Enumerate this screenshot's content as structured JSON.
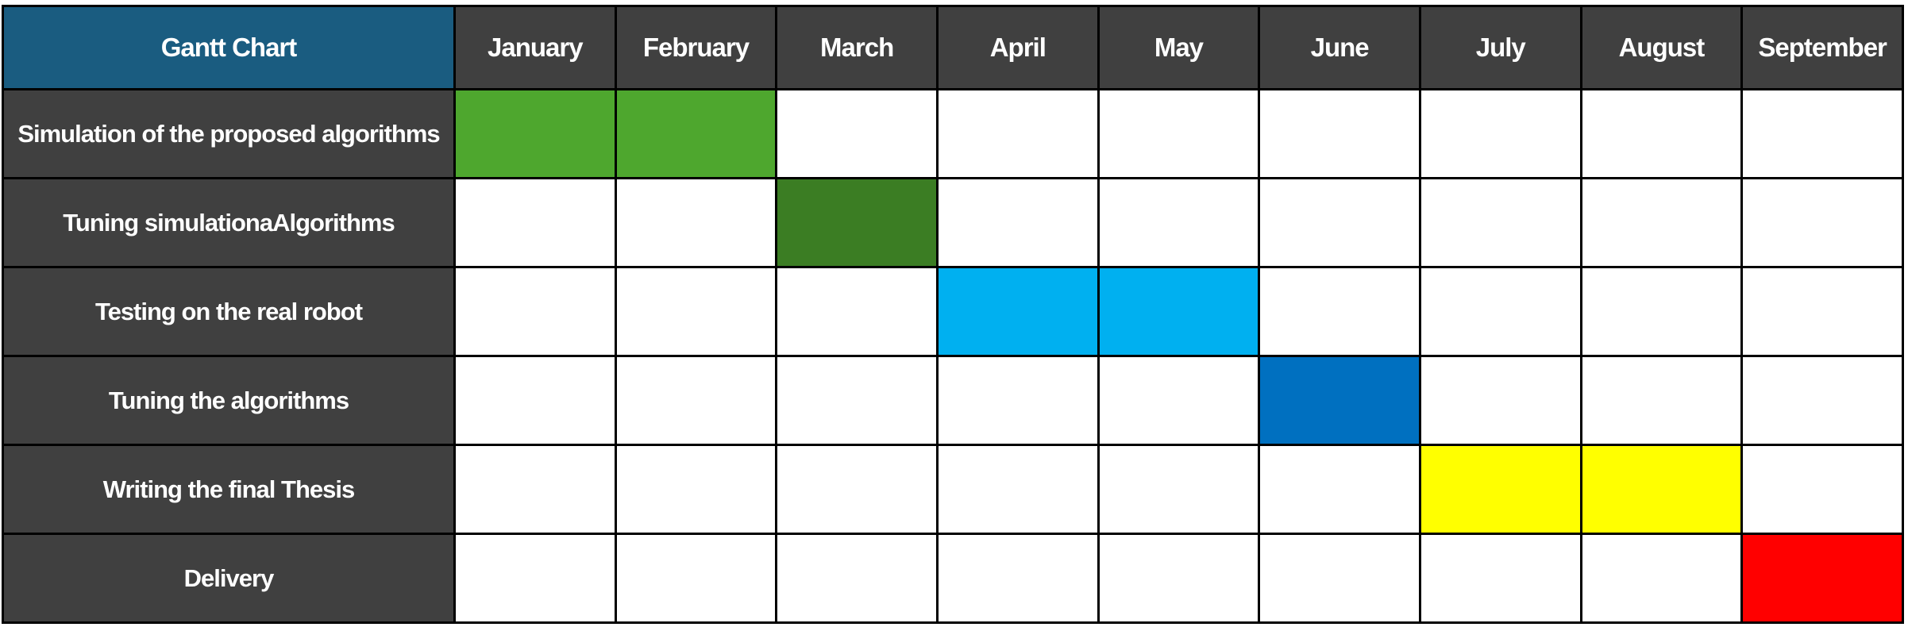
{
  "chart_data": {
    "type": "table",
    "title": "Gantt Chart",
    "months": [
      "January",
      "February",
      "March",
      "April",
      "May",
      "June",
      "July",
      "August",
      "September"
    ],
    "tasks": [
      {
        "name": "Simulation of the proposed algorithms",
        "months": [
          "January",
          "February"
        ],
        "color": "#4ea72e"
      },
      {
        "name": "Tuning simulationaAlgorithms",
        "months": [
          "March"
        ],
        "color": "#3b7d23"
      },
      {
        "name": "Testing on the real robot",
        "months": [
          "April",
          "May"
        ],
        "color": "#00b0f0"
      },
      {
        "name": "Tuning the algorithms",
        "months": [
          "June"
        ],
        "color": "#0070c0"
      },
      {
        "name": "Writing the final Thesis",
        "months": [
          "July",
          "August"
        ],
        "color": "#ffff00"
      },
      {
        "name": "Delivery",
        "months": [
          "September"
        ],
        "color": "#ff0000"
      }
    ]
  },
  "colors": {
    "header_bg": "#404040",
    "corner_bg": "#1a5c80",
    "task_bg": "#404040",
    "text": "#ffffff",
    "grid": "#000000"
  }
}
